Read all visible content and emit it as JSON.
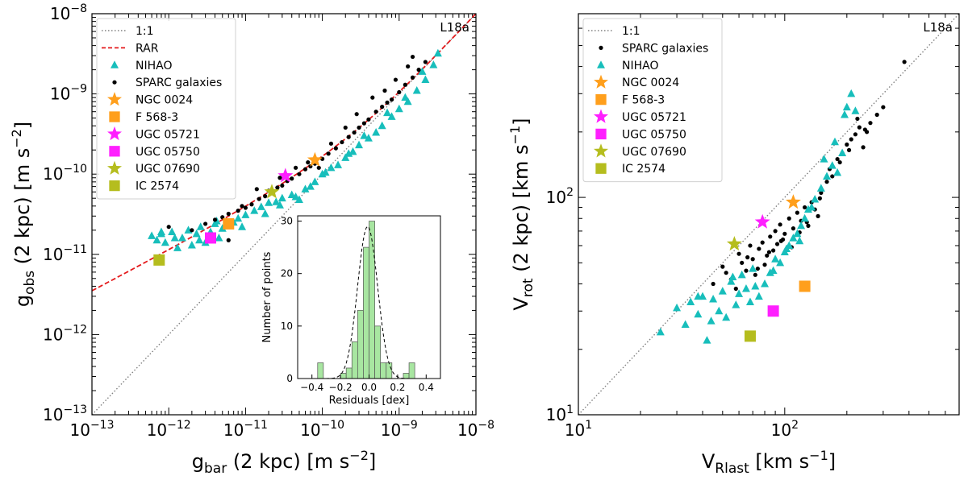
{
  "chart_data": [
    {
      "type": "scatter",
      "title": "",
      "annotation": "L18a",
      "xlabel": {
        "main": "g",
        "sub": "bar",
        "rest": " (2 kpc) [m s",
        "sup": "−2",
        "end": "]"
      },
      "ylabel": {
        "main": "g",
        "sub": "obs",
        "rest": " (2 kpc) [m s",
        "sup": "−2",
        "end": "]"
      },
      "xscale": "log",
      "yscale": "log",
      "xlim": [
        1e-13,
        1e-08
      ],
      "ylim": [
        1e-13,
        1e-08
      ],
      "ticks": [
        {
          "v": 1e-13,
          "label": "10",
          "exp": "−13"
        },
        {
          "v": 1e-12,
          "label": "10",
          "exp": "−12"
        },
        {
          "v": 1e-11,
          "label": "10",
          "exp": "−11"
        },
        {
          "v": 1e-10,
          "label": "10",
          "exp": "−10"
        },
        {
          "v": 1e-09,
          "label": "10",
          "exp": "−9"
        },
        {
          "v": 1e-08,
          "label": "10",
          "exp": "−8"
        }
      ],
      "legend_position": "upper-left",
      "legend": [
        {
          "label": "1:1",
          "kind": "dotted-line",
          "color": "#808080"
        },
        {
          "label": "RAR",
          "kind": "dashed-line",
          "color": "#e41a1c"
        },
        {
          "label": "NIHAO",
          "kind": "triangle",
          "color": "#17bebb"
        },
        {
          "label": "SPARC galaxies",
          "kind": "dot",
          "color": "#000000"
        },
        {
          "label": "NGC 0024",
          "kind": "star",
          "color": "#ff9f1c"
        },
        {
          "label": "F 568-3",
          "kind": "square",
          "color": "#ff9f1c"
        },
        {
          "label": "UGC 05721",
          "kind": "star",
          "color": "#ff1fff"
        },
        {
          "label": "UGC 05750",
          "kind": "square",
          "color": "#ff1fff"
        },
        {
          "label": "UGC 07690",
          "kind": "star",
          "color": "#b5bd1e"
        },
        {
          "label": "IC 2574",
          "kind": "square",
          "color": "#b5bd1e"
        }
      ],
      "rar_curve": "g_obs = g_bar / (1 - exp(-sqrt(g_bar / 1.2e-10)))",
      "series": [
        {
          "name": "NIHAO",
          "marker": "triangle",
          "color": "#17bebb",
          "x": [
            6e-13,
            7e-13,
            8e-13,
            9e-13,
            1.1e-12,
            1.3e-12,
            1.5e-12,
            1.8e-12,
            2e-12,
            2.3e-12,
            2.6e-12,
            3e-12,
            3.5e-12,
            4e-12,
            4.5e-12,
            5e-12,
            6e-12,
            7e-12,
            8e-12,
            1e-11,
            1.3e-11,
            1.6e-11,
            2e-11,
            2.5e-11,
            3e-11,
            4e-11,
            5e-11,
            6e-11,
            8e-11,
            1e-10,
            1.3e-10,
            1.6e-10,
            2e-10,
            2.5e-10,
            3e-10,
            4e-10,
            5e-10,
            6e-10,
            8e-10,
            1e-09,
            1.3e-09,
            1.7e-09,
            2.2e-09,
            2.8e-09,
            3.2e-09,
            8e-13,
            1.2e-12,
            2.5e-12,
            4.2e-12,
            9e-12,
            1.8e-11,
            2.8e-11,
            4.5e-11,
            7e-11,
            1.1e-10,
            2.2e-10,
            3.5e-10,
            7e-10,
            1.2e-09,
            2e-09
          ],
          "y": [
            1.7e-11,
            1.5e-11,
            1.8e-11,
            1.4e-11,
            1.9e-11,
            1.2e-11,
            1.6e-11,
            2e-11,
            1.3e-11,
            1.8e-11,
            2.2e-11,
            1.4e-11,
            1.9e-11,
            2.4e-11,
            1.6e-11,
            2.1e-11,
            2.3e-11,
            2.5e-11,
            2.8e-11,
            3.1e-11,
            3.5e-11,
            3.9e-11,
            4.4e-11,
            4.5e-11,
            5e-11,
            5.5e-11,
            4.8e-11,
            6.5e-11,
            8e-11,
            1e-10,
            1.2e-10,
            1.3e-10,
            1.6e-10,
            1.9e-10,
            2.3e-10,
            2.8e-10,
            3.3e-10,
            4e-10,
            5.2e-10,
            6.5e-10,
            8e-10,
            1.1e-09,
            1.5e-09,
            2.3e-09,
            3.2e-09,
            1.9e-11,
            1.6e-11,
            1.5e-11,
            2.6e-11,
            2.2e-11,
            3.2e-11,
            4.1e-11,
            5.2e-11,
            7e-11,
            1.05e-10,
            1.8e-10,
            3e-10,
            5.8e-10,
            9e-10,
            1.9e-09
          ]
        },
        {
          "name": "SPARC galaxies",
          "marker": "dot",
          "color": "#000000",
          "x": [
            1e-12,
            2e-12,
            3e-12,
            4e-12,
            5e-12,
            6e-12,
            8e-12,
            1e-11,
            1.2e-11,
            1.5e-11,
            1.8e-11,
            2.2e-11,
            2.6e-11,
            3e-11,
            3.5e-11,
            4e-11,
            5e-11,
            6e-11,
            7e-11,
            8e-11,
            1e-10,
            1.2e-10,
            1.5e-10,
            1.8e-10,
            2.2e-10,
            2.6e-10,
            3e-10,
            3.5e-10,
            4e-10,
            5e-10,
            6e-10,
            7e-10,
            8e-10,
            1e-09,
            1.2e-09,
            1.5e-09,
            1.8e-09,
            2.2e-09,
            6e-12,
            9e-12,
            1.4e-11,
            2e-11,
            2.8e-11,
            4.5e-11,
            6.5e-11,
            9e-11,
            1.3e-10,
            2e-10,
            2.8e-10,
            4.5e-10,
            6.5e-10,
            9e-10,
            1.3e-09,
            1.5e-09
          ],
          "y": [
            2.2e-11,
            2e-11,
            2.4e-11,
            2.7e-11,
            2.9e-11,
            3.2e-11,
            3.5e-11,
            3.8e-11,
            4.2e-11,
            4.9e-11,
            5.3e-11,
            6e-11,
            6.8e-11,
            7.2e-11,
            8.2e-11,
            8.8e-11,
            1e-10,
            1.15e-10,
            1.25e-10,
            1.35e-10,
            1.55e-10,
            1.8e-10,
            2.1e-10,
            2.5e-10,
            2.9e-10,
            3.3e-10,
            3.8e-10,
            4.3e-10,
            4.8e-10,
            6e-10,
            6.9e-10,
            7.8e-10,
            8.5e-10,
            1.05e-09,
            1.3e-09,
            1.6e-09,
            2e-09,
            2.5e-09,
            1.5e-11,
            4e-11,
            6.5e-11,
            6.2e-11,
            9e-11,
            1.2e-10,
            1.4e-10,
            1.2e-10,
            2.4e-10,
            3.8e-10,
            5.6e-10,
            9e-10,
            1.1e-09,
            1.5e-09,
            2.2e-09,
            2.9e-09
          ]
        },
        {
          "name": "NGC 0024",
          "marker": "star",
          "color": "#ff9f1c",
          "x": [
            8e-11
          ],
          "y": [
            1.5e-10
          ]
        },
        {
          "name": "F 568-3",
          "marker": "square",
          "color": "#ff9f1c",
          "x": [
            6e-12
          ],
          "y": [
            2.4e-11
          ]
        },
        {
          "name": "UGC 05721",
          "marker": "star",
          "color": "#ff1fff",
          "x": [
            3.3e-11
          ],
          "y": [
            9.5e-11
          ]
        },
        {
          "name": "UGC 05750",
          "marker": "square",
          "color": "#ff1fff",
          "x": [
            3.5e-12
          ],
          "y": [
            1.6e-11
          ]
        },
        {
          "name": "UGC 07690",
          "marker": "star",
          "color": "#b5bd1e",
          "x": [
            2.2e-11
          ],
          "y": [
            6e-11
          ]
        },
        {
          "name": "IC 2574",
          "marker": "square",
          "color": "#b5bd1e",
          "x": [
            7.5e-13
          ],
          "y": [
            8.5e-12
          ]
        }
      ],
      "inset": {
        "type": "bar",
        "xlabel": "Residuals [dex]",
        "ylabel": "Number of points",
        "xlim": [
          -0.5,
          0.5
        ],
        "ylim": [
          0,
          31
        ],
        "xticks": [
          {
            "v": -0.4,
            "label": "−0.4"
          },
          {
            "v": -0.2,
            "label": "−0.2"
          },
          {
            "v": 0.0,
            "label": "0.0"
          },
          {
            "v": 0.2,
            "label": "0.2"
          },
          {
            "v": 0.4,
            "label": "0.4"
          }
        ],
        "yticks": [
          {
            "v": 0,
            "label": "0"
          },
          {
            "v": 10,
            "label": "10"
          },
          {
            "v": 20,
            "label": "20"
          },
          {
            "v": 30,
            "label": "30"
          }
        ],
        "bin_width": 0.04,
        "bin_starts": [
          -0.36,
          -0.32,
          -0.28,
          -0.24,
          -0.2,
          -0.16,
          -0.12,
          -0.08,
          -0.04,
          0.0,
          0.04,
          0.08,
          0.12,
          0.16,
          0.2,
          0.24,
          0.28
        ],
        "counts": [
          3,
          0,
          0,
          0,
          1,
          2,
          7,
          13,
          25,
          30,
          10,
          3,
          3,
          0,
          0,
          1,
          3
        ],
        "bar_color": "#a8e6a1",
        "gaussian": {
          "mu": -0.01,
          "sigma": 0.07,
          "peak": 29
        }
      }
    },
    {
      "type": "scatter",
      "title": "",
      "annotation": "L18a",
      "xlabel": {
        "main": "V",
        "sub": "Rlast",
        "rest": " [km s",
        "sup": "−1",
        "end": "]"
      },
      "ylabel": {
        "main": "V",
        "sub": "rot",
        "rest": " (2 kpc) [km s",
        "sup": "−1",
        "end": "]"
      },
      "xscale": "log",
      "yscale": "log",
      "xlim": [
        10,
        700
      ],
      "ylim": [
        10,
        700
      ],
      "ticks": [
        {
          "v": 10,
          "label": "10",
          "exp": "1"
        },
        {
          "v": 100,
          "label": "10",
          "exp": "2"
        }
      ],
      "legend_position": "upper-left",
      "legend": [
        {
          "label": "1:1",
          "kind": "dotted-line",
          "color": "#808080"
        },
        {
          "label": "SPARC galaxies",
          "kind": "dot",
          "color": "#000000"
        },
        {
          "label": "NIHAO",
          "kind": "triangle",
          "color": "#17bebb"
        },
        {
          "label": "NGC 0024",
          "kind": "star",
          "color": "#ff9f1c"
        },
        {
          "label": "F 568-3",
          "kind": "square",
          "color": "#ff9f1c"
        },
        {
          "label": "UGC 05721",
          "kind": "star",
          "color": "#ff1fff"
        },
        {
          "label": "UGC 05750",
          "kind": "square",
          "color": "#ff1fff"
        },
        {
          "label": "UGC 07690",
          "kind": "star",
          "color": "#b5bd1e"
        },
        {
          "label": "IC 2574",
          "kind": "square",
          "color": "#b5bd1e"
        }
      ],
      "series": [
        {
          "name": "SPARC galaxies",
          "marker": "dot",
          "color": "#000000",
          "x": [
            50,
            55,
            60,
            62,
            65,
            68,
            70,
            72,
            75,
            78,
            80,
            82,
            85,
            88,
            90,
            92,
            95,
            98,
            100,
            105,
            110,
            115,
            120,
            125,
            130,
            135,
            140,
            145,
            150,
            160,
            170,
            180,
            190,
            200,
            210,
            220,
            230,
            240,
            250,
            260,
            280,
            300,
            380,
            45,
            52,
            58,
            66,
            74,
            84,
            96,
            108,
            118,
            128,
            148,
            165,
            185,
            205,
            225,
            245
          ],
          "y": [
            48,
            42,
            55,
            50,
            46,
            60,
            52,
            44,
            58,
            62,
            49,
            54,
            66,
            57,
            70,
            61,
            75,
            64,
            68,
            80,
            72,
            85,
            78,
            90,
            74,
            95,
            88,
            82,
            105,
            118,
            125,
            150,
            160,
            175,
            185,
            195,
            210,
            170,
            200,
            220,
            240,
            260,
            420,
            40,
            45,
            38,
            53,
            47,
            56,
            63,
            59,
            69,
            77,
            99,
            135,
            145,
            165,
            230,
            205
          ]
        },
        {
          "name": "NIHAO",
          "marker": "triangle",
          "color": "#17bebb",
          "x": [
            25,
            30,
            33,
            35,
            38,
            40,
            42,
            45,
            48,
            50,
            52,
            55,
            58,
            60,
            62,
            65,
            68,
            70,
            75,
            80,
            85,
            90,
            95,
            100,
            105,
            110,
            115,
            120,
            125,
            130,
            140,
            150,
            160,
            170,
            180,
            190,
            200,
            210,
            220,
            38,
            44,
            56,
            72,
            88,
            102,
            118,
            135,
            155,
            175,
            195
          ],
          "y": [
            24,
            31,
            26,
            33,
            29,
            35,
            22,
            34,
            30,
            37,
            28,
            41,
            32,
            36,
            44,
            38,
            33,
            47,
            35,
            40,
            45,
            52,
            50,
            56,
            60,
            65,
            68,
            74,
            80,
            88,
            98,
            110,
            125,
            140,
            130,
            160,
            260,
            300,
            250,
            35,
            27,
            43,
            39,
            46,
            58,
            63,
            90,
            150,
            180,
            240
          ]
        },
        {
          "name": "NGC 0024",
          "marker": "star",
          "color": "#ff9f1c",
          "x": [
            110
          ],
          "y": [
            95
          ]
        },
        {
          "name": "F 568-3",
          "marker": "square",
          "color": "#ff9f1c",
          "x": [
            125
          ],
          "y": [
            39
          ]
        },
        {
          "name": "UGC 05721",
          "marker": "star",
          "color": "#ff1fff",
          "x": [
            78
          ],
          "y": [
            77
          ]
        },
        {
          "name": "UGC 05750",
          "marker": "square",
          "color": "#ff1fff",
          "x": [
            88
          ],
          "y": [
            30
          ]
        },
        {
          "name": "UGC 07690",
          "marker": "star",
          "color": "#b5bd1e",
          "x": [
            57
          ],
          "y": [
            61
          ]
        },
        {
          "name": "IC 2574",
          "marker": "square",
          "color": "#b5bd1e",
          "x": [
            68
          ],
          "y": [
            23
          ]
        }
      ]
    }
  ]
}
